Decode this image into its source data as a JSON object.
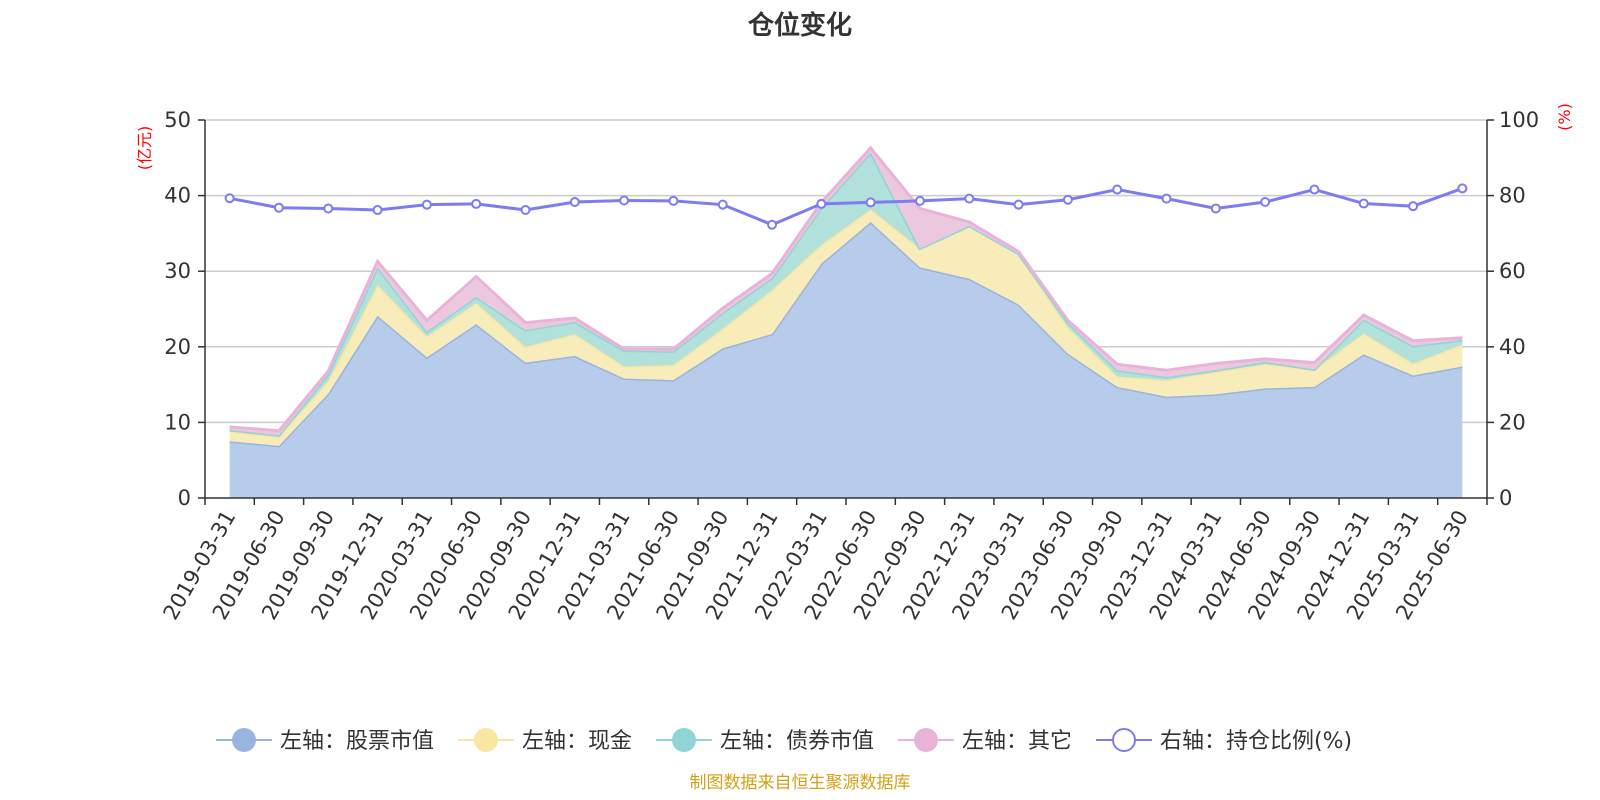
{
  "chart_data": {
    "type": "area",
    "title": "仓位变化",
    "left_axis_unit": "(亿元)",
    "right_axis_unit": "(%)",
    "left_ylim": [
      0,
      50
    ],
    "right_ylim": [
      0,
      100
    ],
    "left_ticks": [
      "0",
      "10",
      "20",
      "30",
      "40",
      "50"
    ],
    "right_ticks": [
      "0",
      "20",
      "40",
      "60",
      "80",
      "100"
    ],
    "grid": true,
    "legend_position": "bottom",
    "categories": [
      "2019-03-31",
      "2019-06-30",
      "2019-09-30",
      "2019-12-31",
      "2020-03-31",
      "2020-06-30",
      "2020-09-30",
      "2020-12-31",
      "2021-03-31",
      "2021-06-30",
      "2021-09-30",
      "2021-12-31",
      "2022-03-31",
      "2022-06-30",
      "2022-09-30",
      "2022-12-31",
      "2023-03-31",
      "2023-06-30",
      "2023-09-30",
      "2023-12-31",
      "2024-03-31",
      "2024-06-30",
      "2024-09-30",
      "2024-12-31",
      "2025-03-31",
      "2025-06-30"
    ],
    "series": [
      {
        "name": "左轴：股票市值",
        "axis": "left",
        "kind": "stacked-area",
        "color": "#9ab4e0",
        "fill": "#b7cbea",
        "values": [
          7.5,
          6.9,
          13.8,
          24.1,
          18.6,
          23.0,
          17.9,
          18.8,
          15.8,
          15.6,
          19.8,
          21.7,
          31.0,
          36.5,
          30.5,
          29.0,
          25.6,
          19.1,
          14.7,
          13.4,
          13.7,
          14.5,
          14.7,
          19.0,
          16.2,
          17.4
        ]
      },
      {
        "name": "左轴：现金",
        "axis": "left",
        "kind": "stacked-area",
        "color": "#f9e6a0",
        "fill": "#f8ecbb",
        "values": [
          1.3,
          1.2,
          1.7,
          4.1,
          2.8,
          2.8,
          2.1,
          2.9,
          1.6,
          2.0,
          2.6,
          5.8,
          2.5,
          1.7,
          2.5,
          7.0,
          6.7,
          3.5,
          1.4,
          2.2,
          3.0,
          3.2,
          2.3,
          2.8,
          1.6,
          2.9
        ]
      },
      {
        "name": "左轴：债券市值",
        "axis": "left",
        "kind": "stacked-area",
        "color": "#90d4d6",
        "fill": "#b2e0db",
        "values": [
          0.2,
          0.2,
          0.9,
          2.3,
          0.6,
          0.8,
          2.2,
          1.6,
          2.1,
          1.8,
          2.1,
          1.6,
          4.9,
          7.5,
          0,
          0,
          0,
          0.6,
          0.8,
          0.4,
          0.2,
          0.3,
          0,
          1.8,
          2.3,
          0.6
        ]
      },
      {
        "name": "左轴：其它",
        "axis": "left",
        "kind": "stacked-area",
        "color": "#e9b3d9",
        "fill": "#ecc8de",
        "values": [
          0.4,
          0.6,
          0.4,
          0.8,
          1.5,
          2.7,
          1.0,
          0.5,
          0.2,
          0.3,
          0.6,
          0.6,
          0.7,
          0.6,
          5.3,
          0.5,
          0.3,
          0.3,
          0.8,
          0.9,
          0.9,
          0.4,
          0.9,
          0.6,
          0.7,
          0.3
        ]
      },
      {
        "name": "右轴：持仓比例(%)",
        "axis": "right",
        "kind": "line",
        "color": "#7b7df0",
        "values": [
          79.3,
          76.8,
          76.6,
          76.2,
          77.6,
          77.8,
          76.2,
          78.3,
          78.7,
          78.6,
          77.6,
          72.3,
          77.8,
          78.2,
          78.6,
          79.2,
          77.6,
          78.9,
          81.6,
          79.2,
          76.6,
          78.3,
          81.6,
          77.9,
          77.2,
          81.9
        ]
      }
    ],
    "source_note": "制图数据来自恒生聚源数据库"
  },
  "colors": {
    "title": "#333333",
    "unit_label": "#ff0000",
    "source_note": "#d4a017",
    "grid": "#cccccc",
    "axis": "#333333"
  }
}
